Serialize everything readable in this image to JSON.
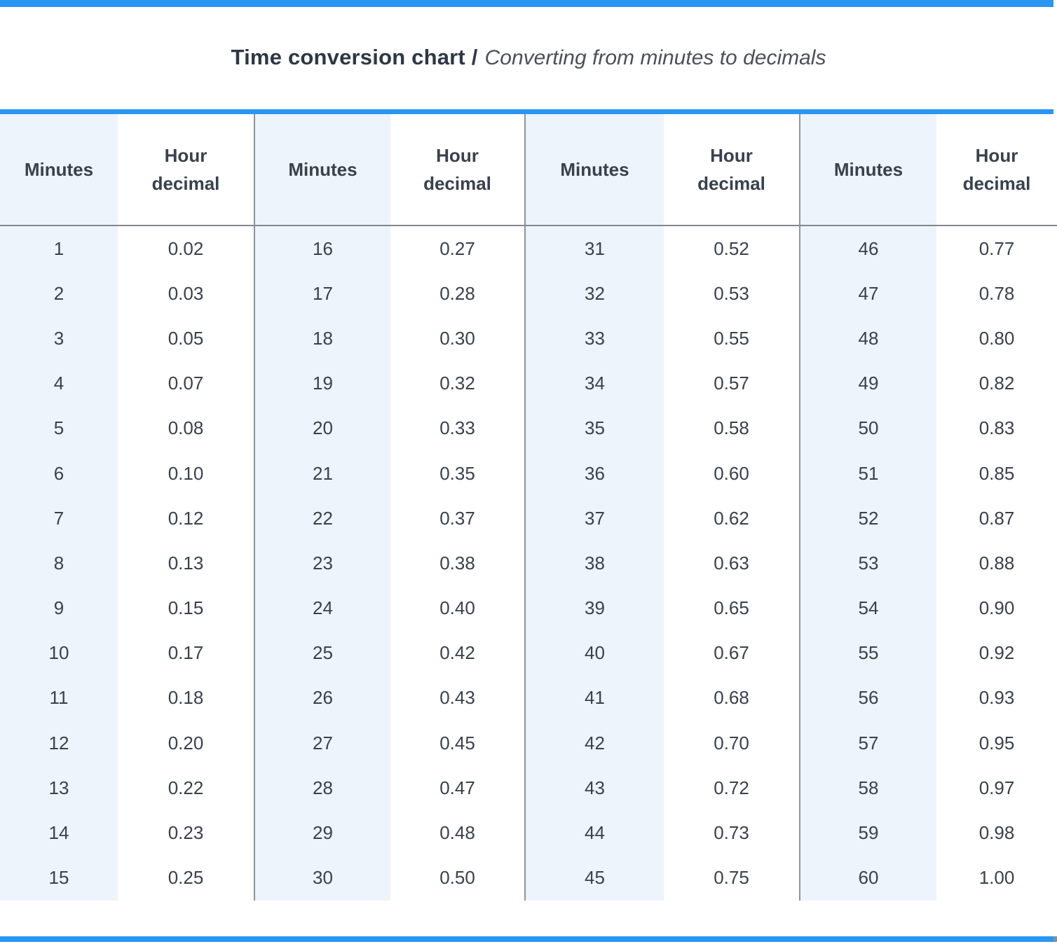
{
  "title": {
    "bold": "Time conversion chart /",
    "italic": "Converting from minutes to decimals"
  },
  "table": {
    "minutes_header": "Minutes",
    "hour_decimal_header": "Hour decimal",
    "groups": [
      {
        "minutes": [
          "1",
          "2",
          "3",
          "4",
          "5",
          "6",
          "7",
          "8",
          "9",
          "10",
          "11",
          "12",
          "13",
          "14",
          "15"
        ],
        "decimals": [
          "0.02",
          "0.03",
          "0.05",
          "0.07",
          "0.08",
          "0.10",
          "0.12",
          "0.13",
          "0.15",
          "0.17",
          "0.18",
          "0.20",
          "0.22",
          "0.23",
          "0.25"
        ]
      },
      {
        "minutes": [
          "16",
          "17",
          "18",
          "19",
          "20",
          "21",
          "22",
          "23",
          "24",
          "25",
          "26",
          "27",
          "28",
          "29",
          "30"
        ],
        "decimals": [
          "0.27",
          "0.28",
          "0.30",
          "0.32",
          "0.33",
          "0.35",
          "0.37",
          "0.38",
          "0.40",
          "0.42",
          "0.43",
          "0.45",
          "0.47",
          "0.48",
          "0.50"
        ]
      },
      {
        "minutes": [
          "31",
          "32",
          "33",
          "34",
          "35",
          "36",
          "37",
          "38",
          "39",
          "40",
          "41",
          "42",
          "43",
          "44",
          "45"
        ],
        "decimals": [
          "0.52",
          "0.53",
          "0.55",
          "0.57",
          "0.58",
          "0.60",
          "0.62",
          "0.63",
          "0.65",
          "0.67",
          "0.68",
          "0.70",
          "0.72",
          "0.73",
          "0.75"
        ]
      },
      {
        "minutes": [
          "46",
          "47",
          "48",
          "49",
          "50",
          "51",
          "52",
          "53",
          "54",
          "55",
          "56",
          "57",
          "58",
          "59",
          "60"
        ],
        "decimals": [
          "0.77",
          "0.78",
          "0.80",
          "0.82",
          "0.83",
          "0.85",
          "0.87",
          "0.88",
          "0.90",
          "0.92",
          "0.93",
          "0.95",
          "0.97",
          "0.98",
          "1.00"
        ]
      }
    ]
  },
  "chart_data": {
    "type": "table",
    "title": "Time conversion chart",
    "subtitle": "Converting from minutes to decimals",
    "columns": [
      "Minutes",
      "Hour decimal",
      "Minutes",
      "Hour decimal",
      "Minutes",
      "Hour decimal",
      "Minutes",
      "Hour decimal"
    ],
    "minutes": [
      1,
      2,
      3,
      4,
      5,
      6,
      7,
      8,
      9,
      10,
      11,
      12,
      13,
      14,
      15,
      16,
      17,
      18,
      19,
      20,
      21,
      22,
      23,
      24,
      25,
      26,
      27,
      28,
      29,
      30,
      31,
      32,
      33,
      34,
      35,
      36,
      37,
      38,
      39,
      40,
      41,
      42,
      43,
      44,
      45,
      46,
      47,
      48,
      49,
      50,
      51,
      52,
      53,
      54,
      55,
      56,
      57,
      58,
      59,
      60
    ],
    "hour_decimals": [
      0.02,
      0.03,
      0.05,
      0.07,
      0.08,
      0.1,
      0.12,
      0.13,
      0.15,
      0.17,
      0.18,
      0.2,
      0.22,
      0.23,
      0.25,
      0.27,
      0.28,
      0.3,
      0.32,
      0.33,
      0.35,
      0.37,
      0.38,
      0.4,
      0.42,
      0.43,
      0.45,
      0.47,
      0.48,
      0.5,
      0.52,
      0.53,
      0.55,
      0.57,
      0.58,
      0.6,
      0.62,
      0.63,
      0.65,
      0.67,
      0.68,
      0.7,
      0.72,
      0.73,
      0.75,
      0.77,
      0.78,
      0.8,
      0.82,
      0.83,
      0.85,
      0.87,
      0.88,
      0.9,
      0.92,
      0.93,
      0.95,
      0.97,
      0.98,
      1.0
    ]
  },
  "colors": {
    "accent_blue": "#2a96f2",
    "light_blue_column": "#edf4fc",
    "separator_gray": "#90949a",
    "text_dark": "#39414d"
  }
}
